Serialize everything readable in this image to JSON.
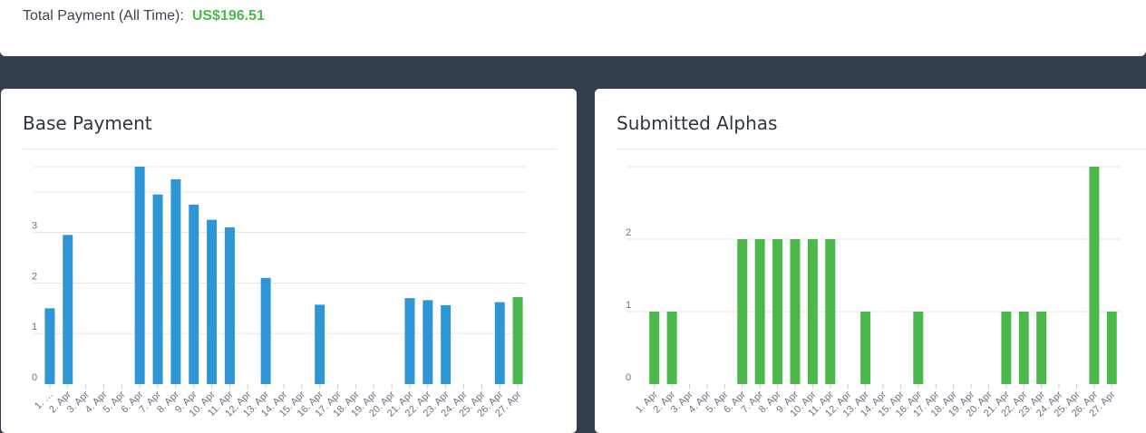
{
  "summary": {
    "total_label": "Total Payment (All Time):",
    "total_value": "US$196.51"
  },
  "colors": {
    "blue": "#2f96d6",
    "green": "#4cb84c",
    "grid": "#e6e6e6"
  },
  "charts": {
    "base_payment": {
      "title": "Base Payment"
    },
    "submitted_alphas": {
      "title": "Submitted Alphas"
    }
  },
  "chart_data": [
    {
      "type": "bar",
      "title": "Base Payment",
      "categories": [
        "1. …",
        "2. Apr",
        "3. Apr",
        "4. Apr",
        "5. Apr",
        "6. Apr",
        "7. Apr",
        "8. Apr",
        "9. Apr",
        "10. Apr",
        "11. Apr",
        "12. Apr",
        "13. Apr",
        "14. Apr",
        "15. Apr",
        "16. Apr",
        "17. Apr",
        "18. Apr",
        "19. Apr",
        "20. Apr",
        "21. Apr",
        "22. Apr",
        "23. Apr",
        "24. Apr",
        "25. Apr",
        "26. Apr",
        "27. Apr"
      ],
      "values": [
        1.5,
        2.95,
        0,
        0,
        0,
        4.3,
        3.75,
        4.05,
        3.55,
        3.25,
        3.1,
        0,
        2.1,
        0,
        0,
        1.57,
        0,
        0,
        0,
        0,
        1.7,
        1.66,
        1.56,
        0,
        0,
        1.62,
        1.72
      ],
      "highlight_last": true,
      "yticks": [
        0,
        1,
        2,
        3
      ],
      "ylim": [
        0,
        4.3
      ],
      "grid": true
    },
    {
      "type": "bar",
      "title": "Submitted Alphas",
      "categories": [
        "1. Apr",
        "2. Apr",
        "3. Apr",
        "4. Apr",
        "5. Apr",
        "6. Apr",
        "7. Apr",
        "8. Apr",
        "9. Apr",
        "10. Apr",
        "11. Apr",
        "12. Apr",
        "13. Apr",
        "14. Apr",
        "15. Apr",
        "16. Apr",
        "17. Apr",
        "18. Apr",
        "19. Apr",
        "20. Apr",
        "21. Apr",
        "22. Apr",
        "23. Apr",
        "24. Apr",
        "25. Apr",
        "26. Apr",
        "27. Apr"
      ],
      "values": [
        1,
        1,
        0,
        0,
        0,
        2,
        2,
        2,
        2,
        2,
        2,
        0,
        1,
        0,
        0,
        1,
        0,
        0,
        0,
        0,
        1,
        1,
        1,
        0,
        0,
        3,
        1
      ],
      "yticks": [
        0,
        1,
        2
      ],
      "ylim": [
        0,
        3
      ],
      "grid": true
    }
  ]
}
